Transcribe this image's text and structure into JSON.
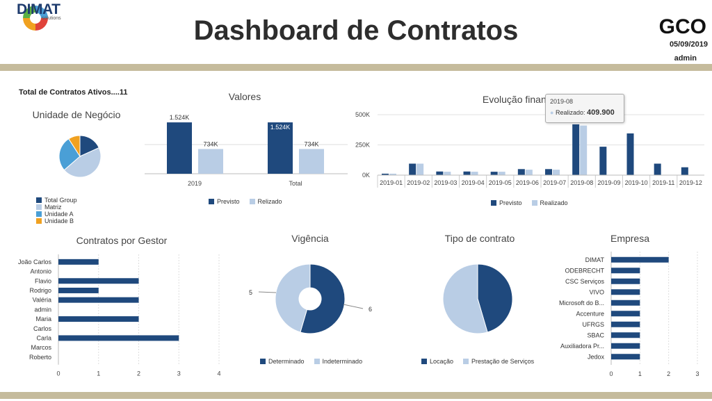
{
  "header": {
    "logo_text": "DIMAT",
    "logo_sub": "solutions",
    "title": "Dashboard de Contratos",
    "app": "GCO",
    "date": "05/09/2019",
    "user": "admin"
  },
  "colors": {
    "dark": "#1f497d",
    "light": "#b9cde5",
    "cyan": "#4a9fd6",
    "orange": "#f0a120",
    "band": "#c5bb9c"
  },
  "total_contracts": "Total de Contratos Ativos....11",
  "chart_data": [
    {
      "id": "unidade",
      "type": "pie",
      "title": "Unidade de Negócio",
      "labels": [
        "Total Group",
        "Matriz",
        "Unidade A",
        "Unidade B"
      ],
      "values": [
        2,
        5,
        3,
        1
      ],
      "colors": [
        "#1f497d",
        "#b9cde5",
        "#4a9fd6",
        "#f0a120"
      ]
    },
    {
      "id": "valores",
      "type": "bar",
      "title": "Valores",
      "categories": [
        "2019",
        "Total"
      ],
      "series": [
        {
          "name": "Previsto",
          "values": [
            1524,
            1524
          ],
          "labels": [
            "1.524K",
            "1.524K"
          ]
        },
        {
          "name": "Relizado",
          "values": [
            734,
            734
          ],
          "labels": [
            "734K",
            "734K"
          ]
        }
      ]
    },
    {
      "id": "evolucao",
      "type": "bar",
      "title": "Evolução financeira",
      "categories": [
        "2019-01",
        "2019-02",
        "2019-03",
        "2019-04",
        "2019-05",
        "2019-06",
        "2019-07",
        "2019-08",
        "2019-09",
        "2019-10",
        "2019-11",
        "2019-12"
      ],
      "yticks": [
        "0K",
        "250K",
        "500K"
      ],
      "ylim": [
        0,
        500
      ],
      "series": [
        {
          "name": "Previsto",
          "values": [
            12,
            95,
            30,
            30,
            28,
            50,
            50,
            420,
            235,
            345,
            95,
            65
          ]
        },
        {
          "name": "Realizado",
          "values": [
            12,
            95,
            28,
            28,
            28,
            45,
            45,
            410,
            0,
            0,
            0,
            0
          ]
        }
      ],
      "tooltip": {
        "category": "2019-08",
        "label": "Realizado:",
        "value": "409.900"
      }
    },
    {
      "id": "gestor",
      "type": "bar",
      "orientation": "horizontal",
      "title": "Contratos por Gestor",
      "categories": [
        "João Carlos",
        "Antonio",
        "Flavio",
        "Rodrigo",
        "Valéria",
        "admin",
        "Maria",
        "Carlos",
        "Carla",
        "Marcos",
        "Roberto"
      ],
      "values": [
        1,
        0,
        2,
        1,
        2,
        0,
        2,
        0,
        3,
        0,
        0
      ],
      "xticks": [
        "0",
        "1",
        "2",
        "3",
        "4"
      ],
      "xlim": [
        0,
        4
      ]
    },
    {
      "id": "vigencia",
      "type": "pie",
      "donut": true,
      "title": "Vigência",
      "labels": [
        "Determinado",
        "Indeterminado"
      ],
      "values": [
        6,
        5
      ],
      "data_labels": [
        "6",
        "5"
      ],
      "colors": [
        "#1f497d",
        "#b9cde5"
      ]
    },
    {
      "id": "tipo",
      "type": "pie",
      "title": "Tipo de contrato",
      "labels": [
        "Locação",
        "Prestação de Serviços"
      ],
      "values": [
        5,
        6
      ],
      "colors": [
        "#1f497d",
        "#b9cde5"
      ]
    },
    {
      "id": "empresa",
      "type": "bar",
      "orientation": "horizontal",
      "title": "Empresa",
      "categories": [
        "DIMAT",
        "ODEBRECHT",
        "CSC Serviços",
        "VIVO",
        "Microsoft do B...",
        "Accenture",
        "UFRGS",
        "SBAC",
        "Auxiliadora Pr...",
        "Jedox"
      ],
      "values": [
        2,
        1,
        1,
        1,
        1,
        1,
        1,
        1,
        1,
        1
      ],
      "xticks": [
        "0",
        "1",
        "2",
        "3"
      ],
      "xlim": [
        0,
        3
      ]
    }
  ]
}
